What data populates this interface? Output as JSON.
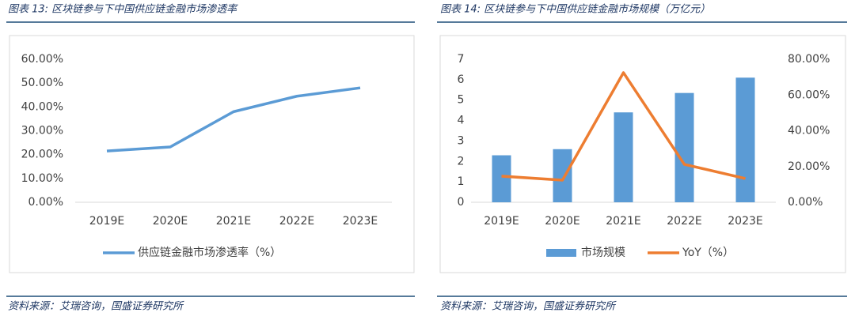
{
  "chart_data": [
    {
      "type": "line",
      "title": "图表 13:  区块链参与下中国供应链金融市场渗透率",
      "source": "资料来源：艾瑞咨询，国盛证券研究所",
      "categories": [
        "2019E",
        "2020E",
        "2021E",
        "2022E",
        "2023E"
      ],
      "series": [
        {
          "name": "供应链金融市场渗透率（%）",
          "color": "#5b9bd5",
          "values": [
            21.5,
            23.2,
            38,
            44.5,
            48
          ]
        }
      ],
      "ylim": [
        0,
        60
      ],
      "yticks": [
        {
          "value": 0,
          "label": "0.00%"
        },
        {
          "value": 10,
          "label": "10.00%"
        },
        {
          "value": 20,
          "label": "20.00%"
        },
        {
          "value": 30,
          "label": "30.00%"
        },
        {
          "value": 40,
          "label": "40.00%"
        },
        {
          "value": 50,
          "label": "50.00%"
        },
        {
          "value": 60,
          "label": "60.00%"
        }
      ],
      "legend": "bottom"
    },
    {
      "type": "combo",
      "title": "图表 14:  区块链参与下中国供应链金融市场规模（万亿元）",
      "source": "资料来源：艾瑞咨询，国盛证券研究所",
      "categories": [
        "2019E",
        "2020E",
        "2021E",
        "2022E",
        "2023E"
      ],
      "series": [
        {
          "name": "市场规模",
          "type": "bar",
          "color": "#5b9bd5",
          "values": [
            2.3,
            2.6,
            4.4,
            5.35,
            6.1
          ]
        },
        {
          "name": "YoY（%）",
          "type": "line",
          "axis": "y2",
          "color": "#ed7d31",
          "values": [
            14.6,
            12.4,
            72.5,
            21.2,
            13.3
          ]
        }
      ],
      "ylim": [
        0,
        7
      ],
      "yticks": [
        0,
        1,
        2,
        3,
        4,
        5,
        6,
        7
      ],
      "y2lim": [
        0,
        80
      ],
      "y2ticks": [
        {
          "value": 0,
          "label": "0.00%"
        },
        {
          "value": 20,
          "label": "20.00%"
        },
        {
          "value": 40,
          "label": "40.00%"
        },
        {
          "value": 60,
          "label": "60.00%"
        },
        {
          "value": 80,
          "label": "80.00%"
        }
      ],
      "legend": "bottom"
    }
  ]
}
